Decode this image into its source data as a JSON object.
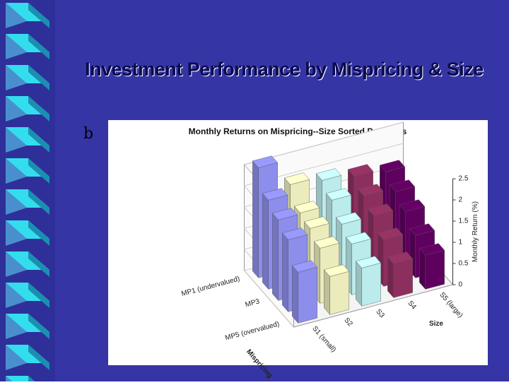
{
  "slide": {
    "title": "Investment Performance by Mispricing & Size",
    "bullet": "b"
  },
  "chart_data": {
    "type": "bar3d",
    "title": "Monthly Returns on Mispricing--Size Sorted Portfolios",
    "x_label": "Size",
    "y_label": "Mispricing",
    "z_label": "Monthly Return (%)",
    "x_categories": [
      "S1 (small)",
      "S2",
      "S3",
      "S4",
      "S5 (large)"
    ],
    "y_categories": [
      "MP1 (undervalued)",
      null,
      "MP3",
      null,
      "MP5 (overvalued)"
    ],
    "colors": [
      "#9999ff",
      "#ffffcc",
      "#ccffff",
      "#993366",
      "#660066"
    ],
    "values": [
      [
        2.6,
        2.0,
        1.9,
        1.8,
        1.7
      ],
      [
        2.1,
        1.6,
        1.7,
        1.6,
        1.5
      ],
      [
        1.9,
        1.5,
        1.4,
        1.4,
        1.3
      ],
      [
        1.7,
        1.3,
        1.2,
        1.1,
        1.0
      ],
      [
        1.2,
        0.9,
        0.9,
        0.8,
        0.8
      ]
    ],
    "zlim": [
      0,
      2.5
    ],
    "zticks": [
      0,
      0.5,
      1,
      1.5,
      2,
      2.5
    ],
    "grid": true
  }
}
